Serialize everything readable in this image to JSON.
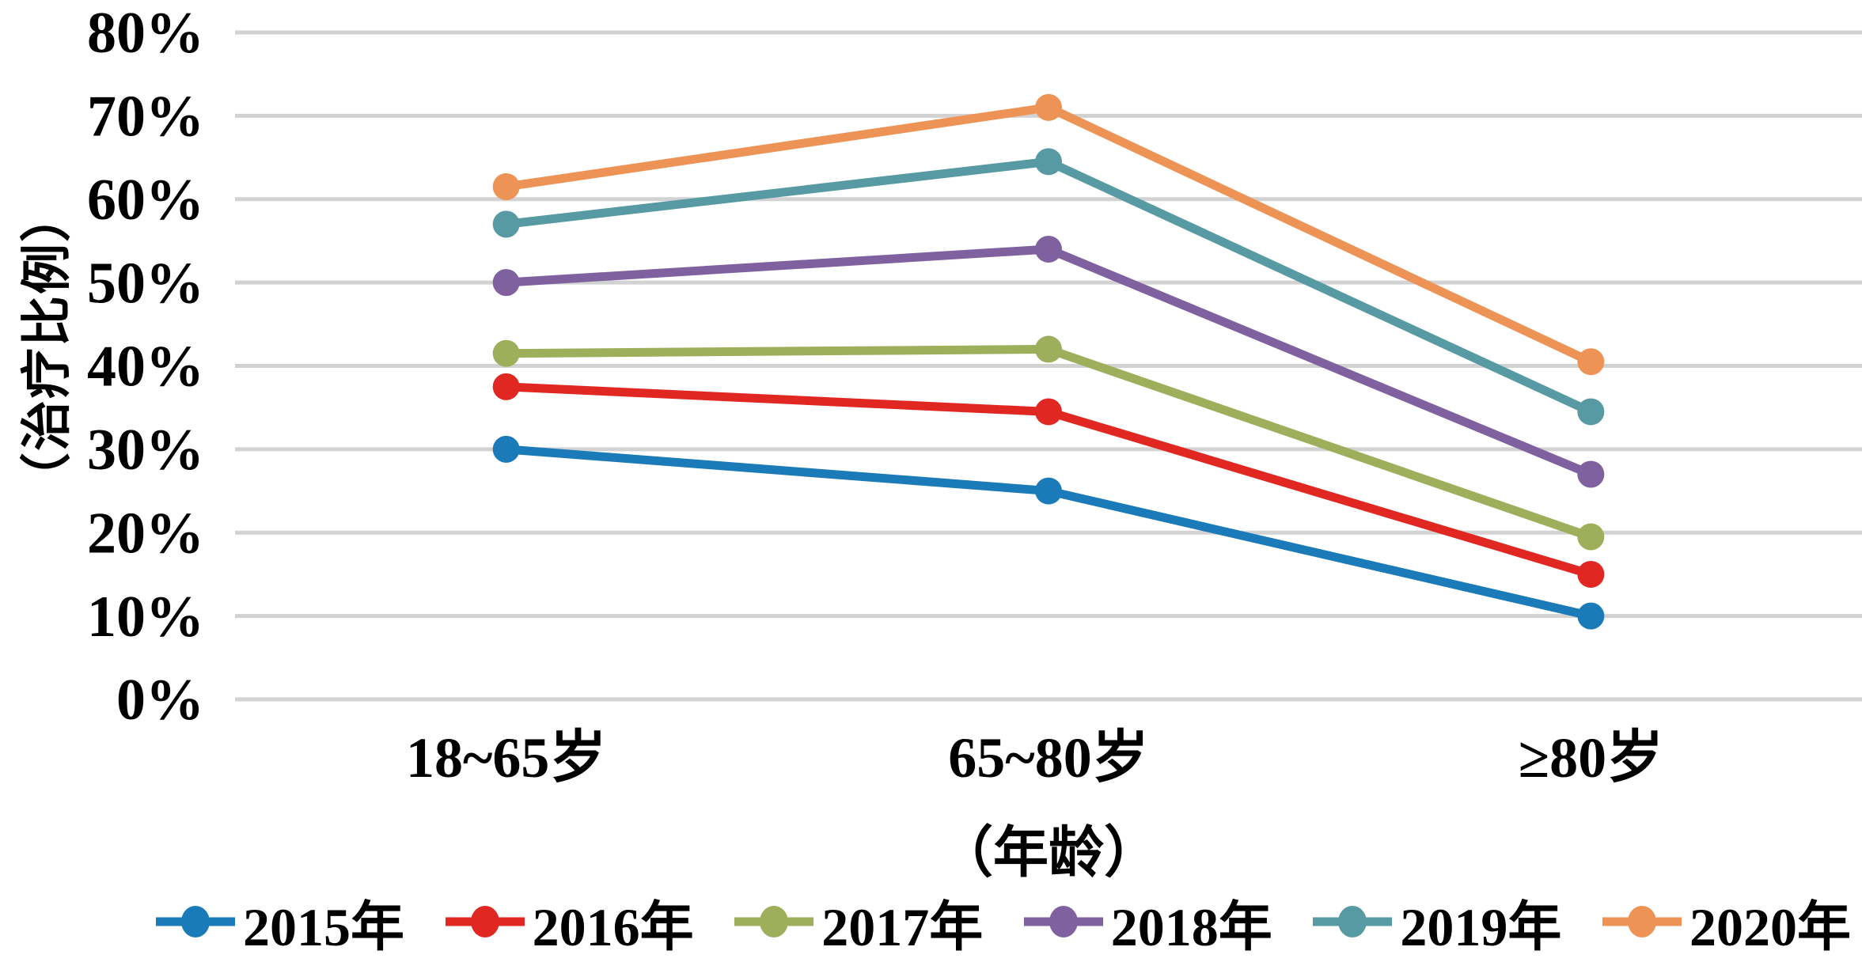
{
  "chart_data": {
    "type": "line",
    "title": "",
    "xlabel": "（年龄）",
    "ylabel": "（治疗比例）",
    "categories": [
      "18~65岁",
      "65~80岁",
      "≥80岁"
    ],
    "y_ticks": [
      "0%",
      "10%",
      "20%",
      "30%",
      "40%",
      "50%",
      "60%",
      "70%",
      "80%"
    ],
    "ylim": [
      0,
      80
    ],
    "grid": "horizontal",
    "gridline_color": "#D2D2D2",
    "background": "#FFFFFF",
    "text_color": "#000000",
    "legend_position": "bottom",
    "marker": "circle",
    "series": [
      {
        "name": "2015年",
        "color": "#1B7AB8",
        "values": [
          30,
          25,
          10
        ]
      },
      {
        "name": "2016年",
        "color": "#E02722",
        "values": [
          37.5,
          34.5,
          15
        ]
      },
      {
        "name": "2017年",
        "color": "#9DAF5B",
        "values": [
          41.5,
          42,
          19.5
        ]
      },
      {
        "name": "2018年",
        "color": "#7F619F",
        "values": [
          50,
          54,
          27
        ]
      },
      {
        "name": "2019年",
        "color": "#579AA4",
        "values": [
          57,
          64.5,
          34.5
        ]
      },
      {
        "name": "2020年",
        "color": "#ED9355",
        "values": [
          61.5,
          71,
          40.5
        ]
      }
    ]
  }
}
